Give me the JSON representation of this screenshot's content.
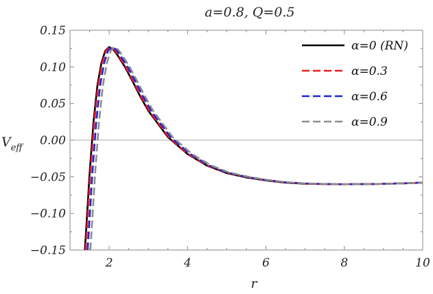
{
  "chart_data": {
    "type": "line",
    "title": "a=0.8, Q=0.5",
    "xlabel": "r",
    "ylabel_main": "V",
    "ylabel_sub": "eff",
    "xlim": [
      1.0,
      10.0
    ],
    "ylim": [
      -0.15,
      0.15
    ],
    "x_ticks": [
      2,
      4,
      6,
      8,
      10
    ],
    "x_tick_labels": [
      "2",
      "4",
      "6",
      "8",
      "10"
    ],
    "y_ticks": [
      0.15,
      0.1,
      0.05,
      0.0,
      -0.05,
      -0.1,
      -0.15
    ],
    "y_tick_labels": [
      "0.15",
      "0.10",
      "0.05",
      "0.00",
      "−0.05",
      "−0.10",
      "−0.15"
    ],
    "zero_line": true,
    "legend_position": "top-right",
    "series": [
      {
        "name": "α=0 (RN)",
        "color": "#000000",
        "dash": "solid",
        "x": [
          1.38,
          1.45,
          1.5,
          1.6,
          1.7,
          1.8,
          1.9,
          2.0,
          2.1,
          2.2,
          2.4,
          2.6,
          2.8,
          3.0,
          3.5,
          4.0,
          4.5,
          5.0,
          5.5,
          6.0,
          6.5,
          7.0,
          7.5,
          8.0,
          8.5,
          9.0,
          9.5,
          10.0
        ],
        "values": [
          -0.15,
          -0.09,
          -0.045,
          0.025,
          0.075,
          0.105,
          0.122,
          0.127,
          0.124,
          0.117,
          0.1,
          0.08,
          0.059,
          0.04,
          0.004,
          -0.019,
          -0.035,
          -0.045,
          -0.051,
          -0.055,
          -0.058,
          -0.0595,
          -0.06,
          -0.0603,
          -0.06,
          -0.0597,
          -0.059,
          -0.058
        ]
      },
      {
        "name": "α=0.3",
        "color": "#ee1c1c",
        "dash": "dashed",
        "x": [
          1.4,
          1.47,
          1.52,
          1.62,
          1.72,
          1.82,
          1.92,
          2.02,
          2.12,
          2.22,
          2.42,
          2.62,
          2.82,
          3.02,
          3.52,
          4.0,
          4.5,
          5.0,
          5.5,
          6.0,
          6.5,
          7.0,
          7.5,
          8.0,
          8.5,
          9.0,
          9.5,
          10.0
        ],
        "values": [
          -0.15,
          -0.09,
          -0.045,
          0.025,
          0.075,
          0.105,
          0.122,
          0.127,
          0.124,
          0.117,
          0.1,
          0.08,
          0.059,
          0.04,
          0.004,
          -0.0185,
          -0.0345,
          -0.0445,
          -0.0505,
          -0.0548,
          -0.0578,
          -0.0593,
          -0.06,
          -0.0603,
          -0.06,
          -0.0597,
          -0.059,
          -0.058
        ]
      },
      {
        "name": "α=0.6",
        "color": "#1e24d6",
        "dash": "dashed",
        "x": [
          1.45,
          1.52,
          1.57,
          1.67,
          1.77,
          1.87,
          1.97,
          2.07,
          2.17,
          2.27,
          2.47,
          2.67,
          2.87,
          3.07,
          3.57,
          4.05,
          4.55,
          5.0,
          5.5,
          6.0,
          6.5,
          7.0,
          7.5,
          8.0,
          8.5,
          9.0,
          9.5,
          10.0
        ],
        "values": [
          -0.15,
          -0.09,
          -0.045,
          0.025,
          0.075,
          0.105,
          0.122,
          0.127,
          0.124,
          0.117,
          0.1,
          0.08,
          0.059,
          0.04,
          0.004,
          -0.0185,
          -0.0345,
          -0.044,
          -0.0502,
          -0.0545,
          -0.0576,
          -0.0592,
          -0.0599,
          -0.0602,
          -0.06,
          -0.0597,
          -0.059,
          -0.058
        ]
      },
      {
        "name": "α=0.9",
        "color": "#8c8c8c",
        "dash": "dashed",
        "x": [
          1.52,
          1.59,
          1.64,
          1.74,
          1.84,
          1.94,
          2.04,
          2.12,
          2.22,
          2.32,
          2.52,
          2.72,
          2.92,
          3.12,
          3.62,
          4.1,
          4.6,
          5.05,
          5.55,
          6.0,
          6.5,
          7.0,
          7.5,
          8.0,
          8.5,
          9.0,
          9.5,
          10.0
        ],
        "values": [
          -0.15,
          -0.09,
          -0.045,
          0.025,
          0.075,
          0.105,
          0.122,
          0.127,
          0.124,
          0.117,
          0.1,
          0.08,
          0.059,
          0.04,
          0.004,
          -0.0185,
          -0.0345,
          -0.044,
          -0.05,
          -0.054,
          -0.0573,
          -0.059,
          -0.0598,
          -0.0602,
          -0.06,
          -0.0597,
          -0.059,
          -0.058
        ]
      }
    ]
  }
}
